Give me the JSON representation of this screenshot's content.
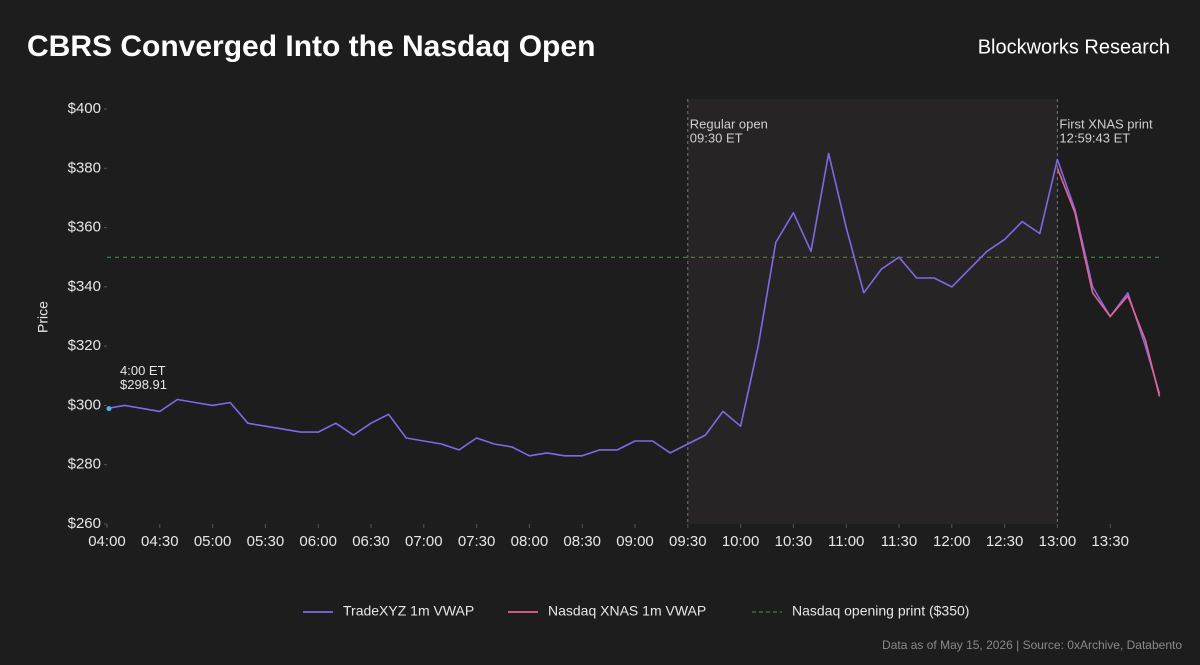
{
  "chart_data": {
    "type": "line",
    "title": "CBRS Converged Into the Nasdaq Open",
    "brand": "Blockworks Research",
    "y_label": "Price",
    "source": "Data as of May 15, 2026 | Source: 0xArchive, Databento",
    "x": [
      "04:00",
      "04:10",
      "04:20",
      "04:30",
      "04:40",
      "04:50",
      "05:00",
      "05:10",
      "05:20",
      "05:30",
      "05:40",
      "05:50",
      "06:00",
      "06:10",
      "06:20",
      "06:30",
      "06:40",
      "06:50",
      "07:00",
      "07:10",
      "07:20",
      "07:30",
      "07:40",
      "07:50",
      "08:00",
      "08:10",
      "08:20",
      "08:30",
      "08:40",
      "08:50",
      "09:00",
      "09:10",
      "09:20",
      "09:30",
      "09:40",
      "09:50",
      "10:00",
      "10:10",
      "10:20",
      "10:30",
      "10:40",
      "10:50",
      "11:00",
      "11:10",
      "11:20",
      "11:30",
      "11:40",
      "11:50",
      "12:00",
      "12:10",
      "12:20",
      "12:30",
      "12:40",
      "12:50",
      "13:00",
      "13:10",
      "13:20",
      "13:30",
      "13:40",
      "13:50",
      "13:58"
    ],
    "series": [
      {
        "name": "TradeXYZ 1m VWAP",
        "color": "#7b6be6",
        "values": [
          299,
          300,
          299,
          298,
          302,
          301,
          300,
          301,
          294,
          293,
          292,
          291,
          291,
          294,
          290,
          294,
          297,
          289,
          288,
          287,
          285,
          289,
          287,
          286,
          283,
          284,
          283,
          283,
          285,
          285,
          288,
          288,
          284,
          287,
          290,
          298,
          293,
          320,
          355,
          365,
          352,
          385,
          360,
          338,
          346,
          350,
          343,
          343,
          340,
          346,
          352,
          356,
          362,
          358,
          383,
          366,
          340,
          330,
          338,
          320,
          304
        ]
      },
      {
        "name": "Nasdaq XNAS 1m VWAP",
        "color": "#e8628f",
        "values": [
          null,
          null,
          null,
          null,
          null,
          null,
          null,
          null,
          null,
          null,
          null,
          null,
          null,
          null,
          null,
          null,
          null,
          null,
          null,
          null,
          null,
          null,
          null,
          null,
          null,
          null,
          null,
          null,
          null,
          null,
          null,
          null,
          null,
          null,
          null,
          null,
          null,
          null,
          null,
          null,
          null,
          null,
          null,
          null,
          null,
          null,
          null,
          null,
          null,
          null,
          null,
          null,
          null,
          null,
          380,
          365,
          338,
          330,
          337,
          322,
          303
        ]
      }
    ],
    "hline": {
      "y": 350,
      "name": "Nasdaq opening print ($350)",
      "color": "#4f8f4f"
    },
    "vlines": [
      {
        "x": "09:30",
        "lines": [
          "Regular open",
          "09:30 ET"
        ]
      },
      {
        "x": "13:00",
        "lines": [
          "First XNAS print",
          "12:59:43 ET"
        ]
      }
    ],
    "start_note": {
      "x": "04:00",
      "y": 298.91,
      "lines": [
        "4:00 ET",
        "$298.91"
      ],
      "color": "#4fb3e8"
    },
    "xlim": [
      "04:00",
      "14:00"
    ],
    "xticks": [
      "04:00",
      "04:30",
      "05:00",
      "05:30",
      "06:00",
      "06:30",
      "07:00",
      "07:30",
      "08:00",
      "08:30",
      "09:00",
      "09:30",
      "10:00",
      "10:30",
      "11:00",
      "11:30",
      "12:00",
      "12:30",
      "13:00",
      "13:30"
    ],
    "ylim": [
      260,
      400
    ],
    "yticks": [
      {
        "value": 260,
        "label": "$260"
      },
      {
        "value": 280,
        "label": "$280"
      },
      {
        "value": 300,
        "label": "$300"
      },
      {
        "value": 320,
        "label": "$320"
      },
      {
        "value": 340,
        "label": "$340"
      },
      {
        "value": 360,
        "label": "$360"
      },
      {
        "value": 380,
        "label": "$380"
      },
      {
        "value": 400,
        "label": "$400"
      }
    ]
  }
}
